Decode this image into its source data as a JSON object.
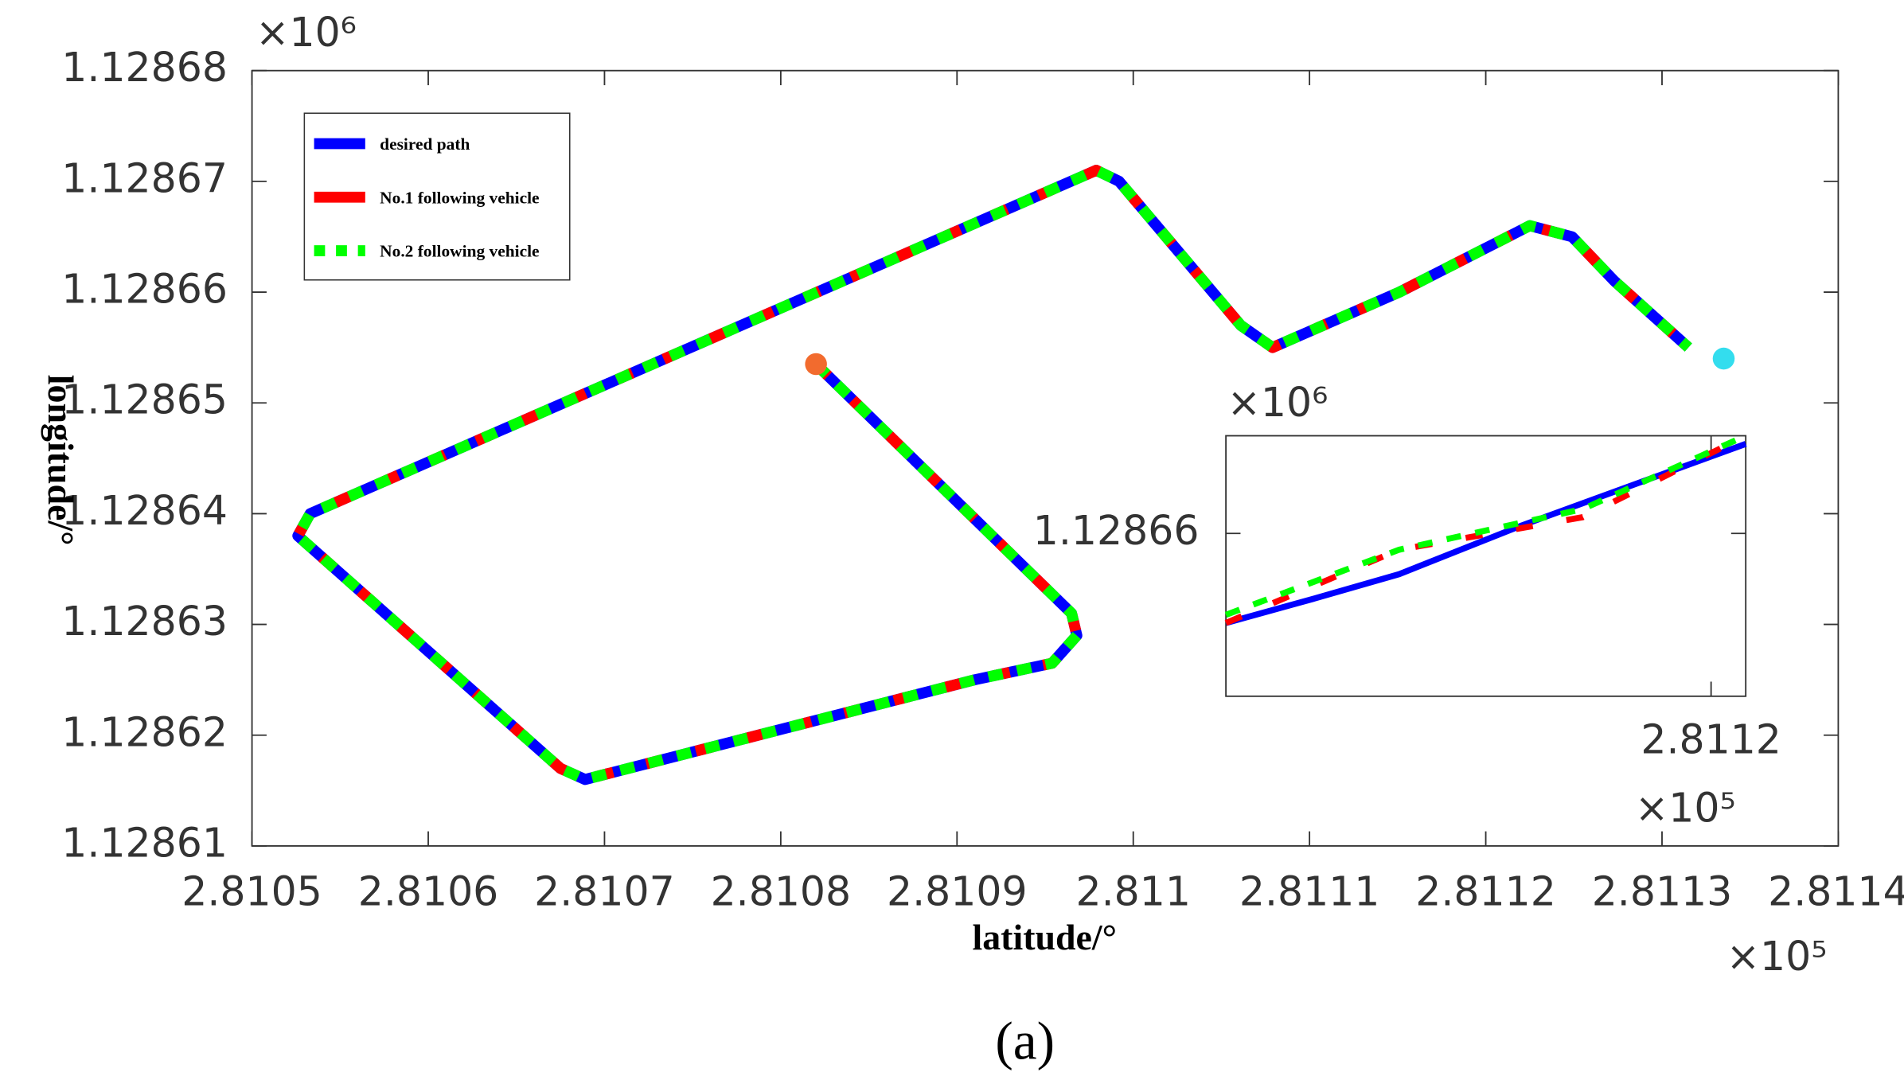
{
  "chart_data": [
    {
      "type": "line",
      "xlabel": "latitude/°",
      "ylabel": "longitude/°",
      "caption": "(a)",
      "x_exponent": "×10⁵",
      "y_exponent": "×10⁶",
      "xlim": [
        2.8105,
        2.8114
      ],
      "ylim": [
        1.12861,
        1.12868
      ],
      "xticks": [
        2.8105,
        2.8106,
        2.8107,
        2.8108,
        2.8109,
        2.811,
        2.8111,
        2.8112,
        2.8113,
        2.8114
      ],
      "yticks": [
        1.12861,
        1.12862,
        1.12863,
        1.12864,
        1.12865,
        1.12866,
        1.12867,
        1.12868
      ],
      "grid": false,
      "legend": "upper left",
      "series": [
        {
          "name": "desired path",
          "color": "#0000ff",
          "linestyle": "solid",
          "x": [
            2.81082,
            2.810965,
            2.810968,
            2.810954,
            2.81091,
            2.810689,
            2.810675,
            2.810526,
            2.810533,
            2.810979,
            2.810992,
            2.811061,
            2.811079,
            2.811151,
            2.811225,
            2.811249,
            2.811273,
            2.811315
          ],
          "values": [
            1.1286535,
            1.128631,
            1.128629,
            1.1286265,
            1.128625,
            1.128616,
            1.128617,
            1.128638,
            1.12864,
            1.128671,
            1.12867,
            1.128657,
            1.128655,
            1.12866,
            1.128666,
            1.128665,
            1.128661,
            1.128655
          ]
        },
        {
          "name": "No.1 following vehicle",
          "color": "#ff0000",
          "linestyle": "solid",
          "x": [
            2.81082,
            2.810965,
            2.810968,
            2.810954,
            2.81091,
            2.810689,
            2.810675,
            2.810526,
            2.810533,
            2.810979,
            2.810992,
            2.811061,
            2.811079,
            2.811151,
            2.811225,
            2.811249,
            2.811273,
            2.811315
          ],
          "values": [
            1.1286535,
            1.128631,
            1.128629,
            1.1286265,
            1.128625,
            1.128616,
            1.128617,
            1.128638,
            1.12864,
            1.128671,
            1.12867,
            1.128657,
            1.128655,
            1.12866,
            1.128666,
            1.128665,
            1.128661,
            1.128655
          ]
        },
        {
          "name": "No.2 following vehicle",
          "color": "#00ff00",
          "linestyle": "dashed",
          "x": [
            2.81082,
            2.810965,
            2.810968,
            2.810954,
            2.81091,
            2.810689,
            2.810675,
            2.810526,
            2.810533,
            2.810979,
            2.810992,
            2.811061,
            2.811079,
            2.811151,
            2.811225,
            2.811249,
            2.811273,
            2.811315
          ],
          "values": [
            1.1286535,
            1.128631,
            1.128629,
            1.1286265,
            1.128625,
            1.128616,
            1.128617,
            1.128638,
            1.12864,
            1.128671,
            1.12867,
            1.128657,
            1.128655,
            1.12866,
            1.128666,
            1.128665,
            1.128661,
            1.128655
          ]
        }
      ],
      "points": [
        {
          "x": 2.81082,
          "y": 1.1286535,
          "color": "#f26b2e"
        },
        {
          "x": 2.811335,
          "y": 1.128654,
          "color": "#33ddee"
        }
      ]
    },
    {
      "type": "line",
      "x_exponent": "×10⁵",
      "y_exponent": "×10⁶",
      "xlim": [
        2.811172,
        2.811202
      ],
      "ylim": [
        1.128658,
        1.1286612
      ],
      "xticks": [
        2.8112
      ],
      "yticks": [
        1.12866
      ],
      "grid": false,
      "series": [
        {
          "color": "#0000ff",
          "linestyle": "solid",
          "x": [
            2.811172,
            2.8111771,
            2.811182,
            2.8111891,
            2.811202
          ],
          "values": [
            1.1286589,
            1.1286592,
            1.1286595,
            1.1286601,
            1.1286611
          ]
        },
        {
          "color": "#ff0000",
          "linestyle": "solid",
          "x": [
            2.811172,
            2.811182,
            2.8111926,
            2.811202
          ],
          "values": [
            1.1286589,
            1.1286598,
            1.1286602,
            1.1286612
          ]
        },
        {
          "color": "#00ff00",
          "linestyle": "dashed",
          "x": [
            2.811172,
            2.811182,
            2.8111926,
            2.811202
          ],
          "values": [
            1.128659,
            1.1286598,
            1.1286603,
            1.1286612
          ]
        }
      ]
    }
  ]
}
